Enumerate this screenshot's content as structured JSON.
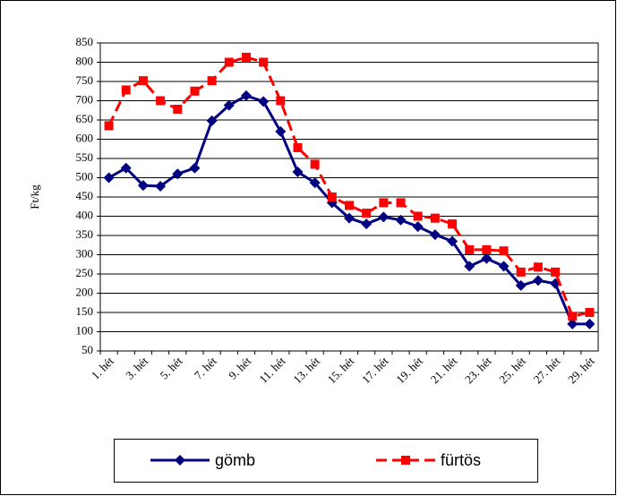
{
  "chart_data": {
    "type": "line",
    "ylabel": "Ft/kg",
    "categories": [
      "1. hét",
      null,
      "3. hét",
      null,
      "5. hét",
      null,
      "7. hét",
      null,
      "9. hét",
      null,
      "11. hét",
      null,
      "13. hét",
      null,
      "15. hét",
      null,
      "17. hét",
      null,
      "19. hét",
      null,
      "21. hét",
      null,
      "23. hét",
      null,
      "25. hét",
      null,
      "27. hét",
      null,
      "29. hét"
    ],
    "series": [
      {
        "name": "gömb",
        "color": "#000080",
        "marker": "diamond",
        "dashed": false,
        "values": [
          500,
          525,
          480,
          478,
          510,
          525,
          648,
          688,
          713,
          698,
          620,
          515,
          487,
          435,
          395,
          380,
          398,
          390,
          373,
          352,
          335,
          270,
          290,
          270,
          220,
          233,
          225,
          120,
          120
        ]
      },
      {
        "name": "fürtös",
        "color": "#ff0000",
        "marker": "square",
        "dashed": true,
        "values": [
          635,
          728,
          752,
          700,
          678,
          725,
          752,
          800,
          813,
          800,
          700,
          578,
          535,
          450,
          428,
          408,
          435,
          435,
          400,
          395,
          380,
          313,
          313,
          310,
          255,
          268,
          255,
          140,
          150
        ]
      }
    ],
    "ylim": [
      50,
      850
    ],
    "yticks": [
      50,
      100,
      150,
      200,
      250,
      300,
      350,
      400,
      450,
      500,
      550,
      600,
      650,
      700,
      750,
      800,
      850
    ],
    "grid": true,
    "legend": "bottom"
  }
}
